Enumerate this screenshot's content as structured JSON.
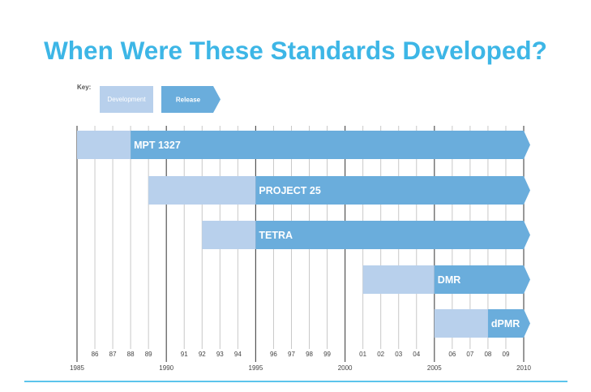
{
  "chart_data": {
    "type": "gantt",
    "title": "When Were These Standards Developed?",
    "key_label": "Key:",
    "legend": [
      {
        "label": "Development",
        "color": "#b8d0ec"
      },
      {
        "label": "Release",
        "color": "#6aaddc"
      }
    ],
    "legend_placement": "top-left",
    "xlim": [
      1985,
      2010
    ],
    "major_ticks": [
      "1985",
      "1990",
      "1995",
      "2000",
      "2005",
      "2010"
    ],
    "minor_ticks": [
      "86",
      "87",
      "88",
      "89",
      "91",
      "92",
      "93",
      "94",
      "96",
      "97",
      "98",
      "99",
      "01",
      "02",
      "03",
      "04",
      "06",
      "07",
      "08",
      "09"
    ],
    "grid": true,
    "series": [
      {
        "name": "MPT 1327",
        "development_start": 1985,
        "release_start": 1988,
        "end": 2010
      },
      {
        "name": "PROJECT 25",
        "development_start": 1989,
        "release_start": 1995,
        "end": 2010
      },
      {
        "name": "TETRA",
        "development_start": 1992,
        "release_start": 1995,
        "end": 2010
      },
      {
        "name": "DMR",
        "development_start": 2001,
        "release_start": 2005,
        "end": 2010
      },
      {
        "name": "dPMR",
        "development_start": 2005,
        "release_start": 2008,
        "end": 2010
      }
    ],
    "colors": {
      "title": "#3db6e6",
      "development": "#b8d0ec",
      "release": "#6aaddc",
      "major_grid": "#555555",
      "minor_grid": "#c8c8c8"
    }
  }
}
